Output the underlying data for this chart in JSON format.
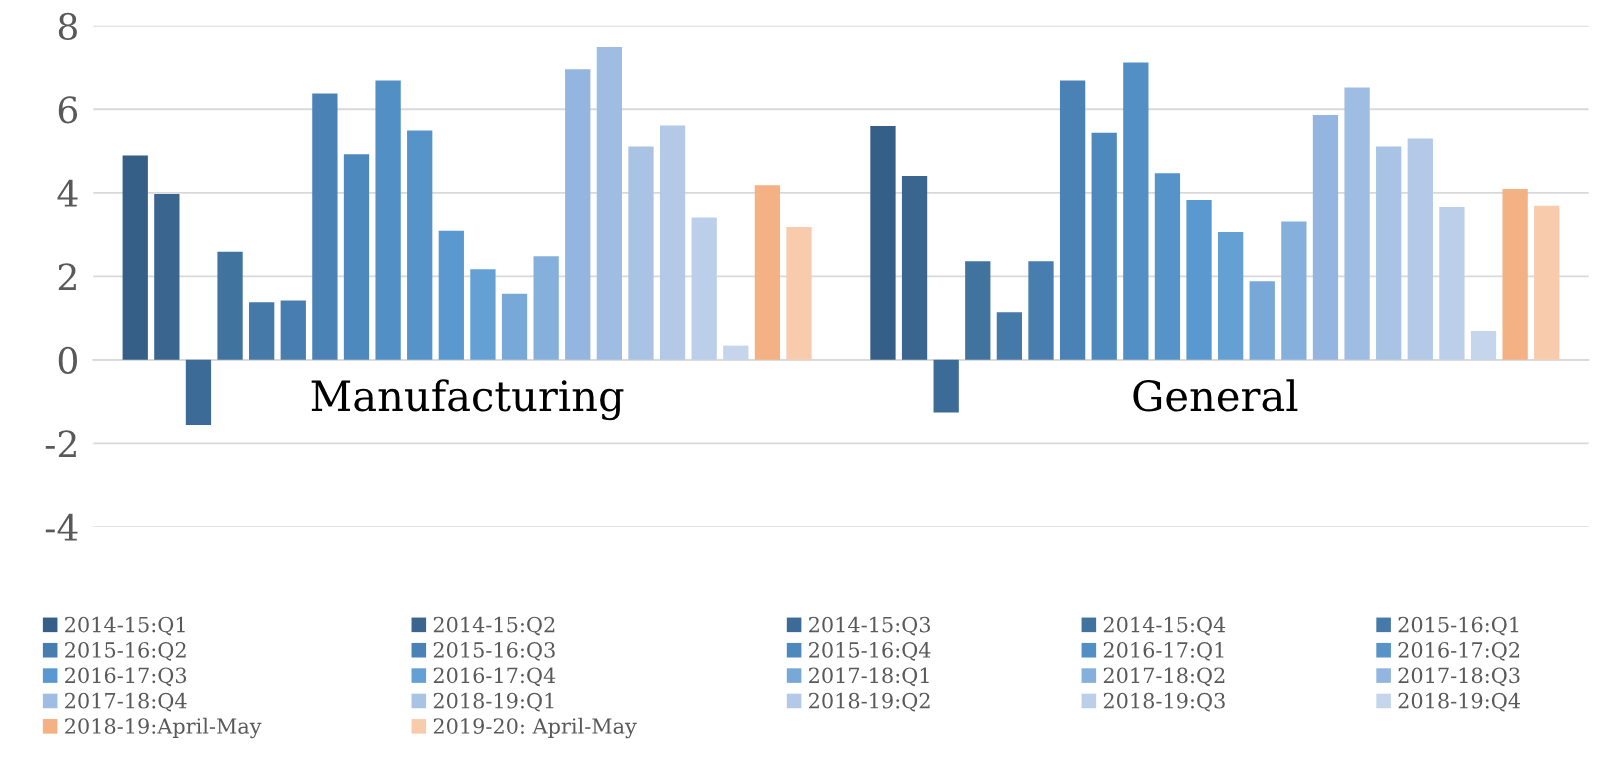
{
  "chart_data": {
    "type": "bar",
    "categories": [
      "Manufacturing",
      "General"
    ],
    "ylim": [
      -4,
      8
    ],
    "yticks": [
      -4,
      -2,
      0,
      2,
      4,
      6,
      8
    ],
    "grid": "y",
    "legend": "bottom",
    "series": [
      {
        "name": "2014-15:Q1",
        "color": "#355f87",
        "values": [
          4.89,
          5.6
        ]
      },
      {
        "name": "2014-15:Q2",
        "color": "#3a658f",
        "values": [
          3.97,
          4.4
        ]
      },
      {
        "name": "2014-15:Q3",
        "color": "#3d6b97",
        "values": [
          -1.56,
          -1.26
        ]
      },
      {
        "name": "2014-15:Q4",
        "color": "#41739f",
        "values": [
          2.59,
          2.36
        ]
      },
      {
        "name": "2015-16:Q1",
        "color": "#4579a8",
        "values": [
          1.38,
          1.14
        ]
      },
      {
        "name": "2015-16:Q2",
        "color": "#487daf",
        "values": [
          1.42,
          2.36
        ]
      },
      {
        "name": "2015-16:Q3",
        "color": "#4b82b6",
        "values": [
          6.38,
          6.69
        ]
      },
      {
        "name": "2015-16:Q4",
        "color": "#4e89be",
        "values": [
          4.92,
          5.44
        ]
      },
      {
        "name": "2016-17:Q1",
        "color": "#528fc5",
        "values": [
          6.69,
          7.12
        ]
      },
      {
        "name": "2016-17:Q2",
        "color": "#5593c9",
        "values": [
          5.49,
          4.47
        ]
      },
      {
        "name": "2016-17:Q3",
        "color": "#5a99d0",
        "values": [
          3.09,
          3.83
        ]
      },
      {
        "name": "2016-17:Q4",
        "color": "#65a0d4",
        "values": [
          2.17,
          3.06
        ]
      },
      {
        "name": "2017-18:Q1",
        "color": "#77a8d8",
        "values": [
          1.58,
          1.88
        ]
      },
      {
        "name": "2017-18:Q2",
        "color": "#86b0dc",
        "values": [
          2.48,
          3.31
        ]
      },
      {
        "name": "2017-18:Q3",
        "color": "#93b5df",
        "values": [
          6.96,
          5.86
        ]
      },
      {
        "name": "2017-18:Q4",
        "color": "#9fbde2",
        "values": [
          7.49,
          6.52
        ]
      },
      {
        "name": "2018-19:Q1",
        "color": "#a9c3e5",
        "values": [
          5.11,
          5.11
        ]
      },
      {
        "name": "2018-19:Q2",
        "color": "#b3c9e7",
        "values": [
          5.61,
          5.3
        ]
      },
      {
        "name": "2018-19:Q3",
        "color": "#bccfea",
        "values": [
          3.41,
          3.66
        ]
      },
      {
        "name": "2018-19:Q4",
        "color": "#c5d6ec",
        "values": [
          0.34,
          0.69
        ]
      },
      {
        "name": "2018-19:April-May",
        "color": "#f4b183",
        "values": [
          4.18,
          4.09
        ]
      },
      {
        "name": "2019-20: April-May",
        "color": "#f8cbad",
        "values": [
          3.18,
          3.69
        ]
      }
    ]
  }
}
